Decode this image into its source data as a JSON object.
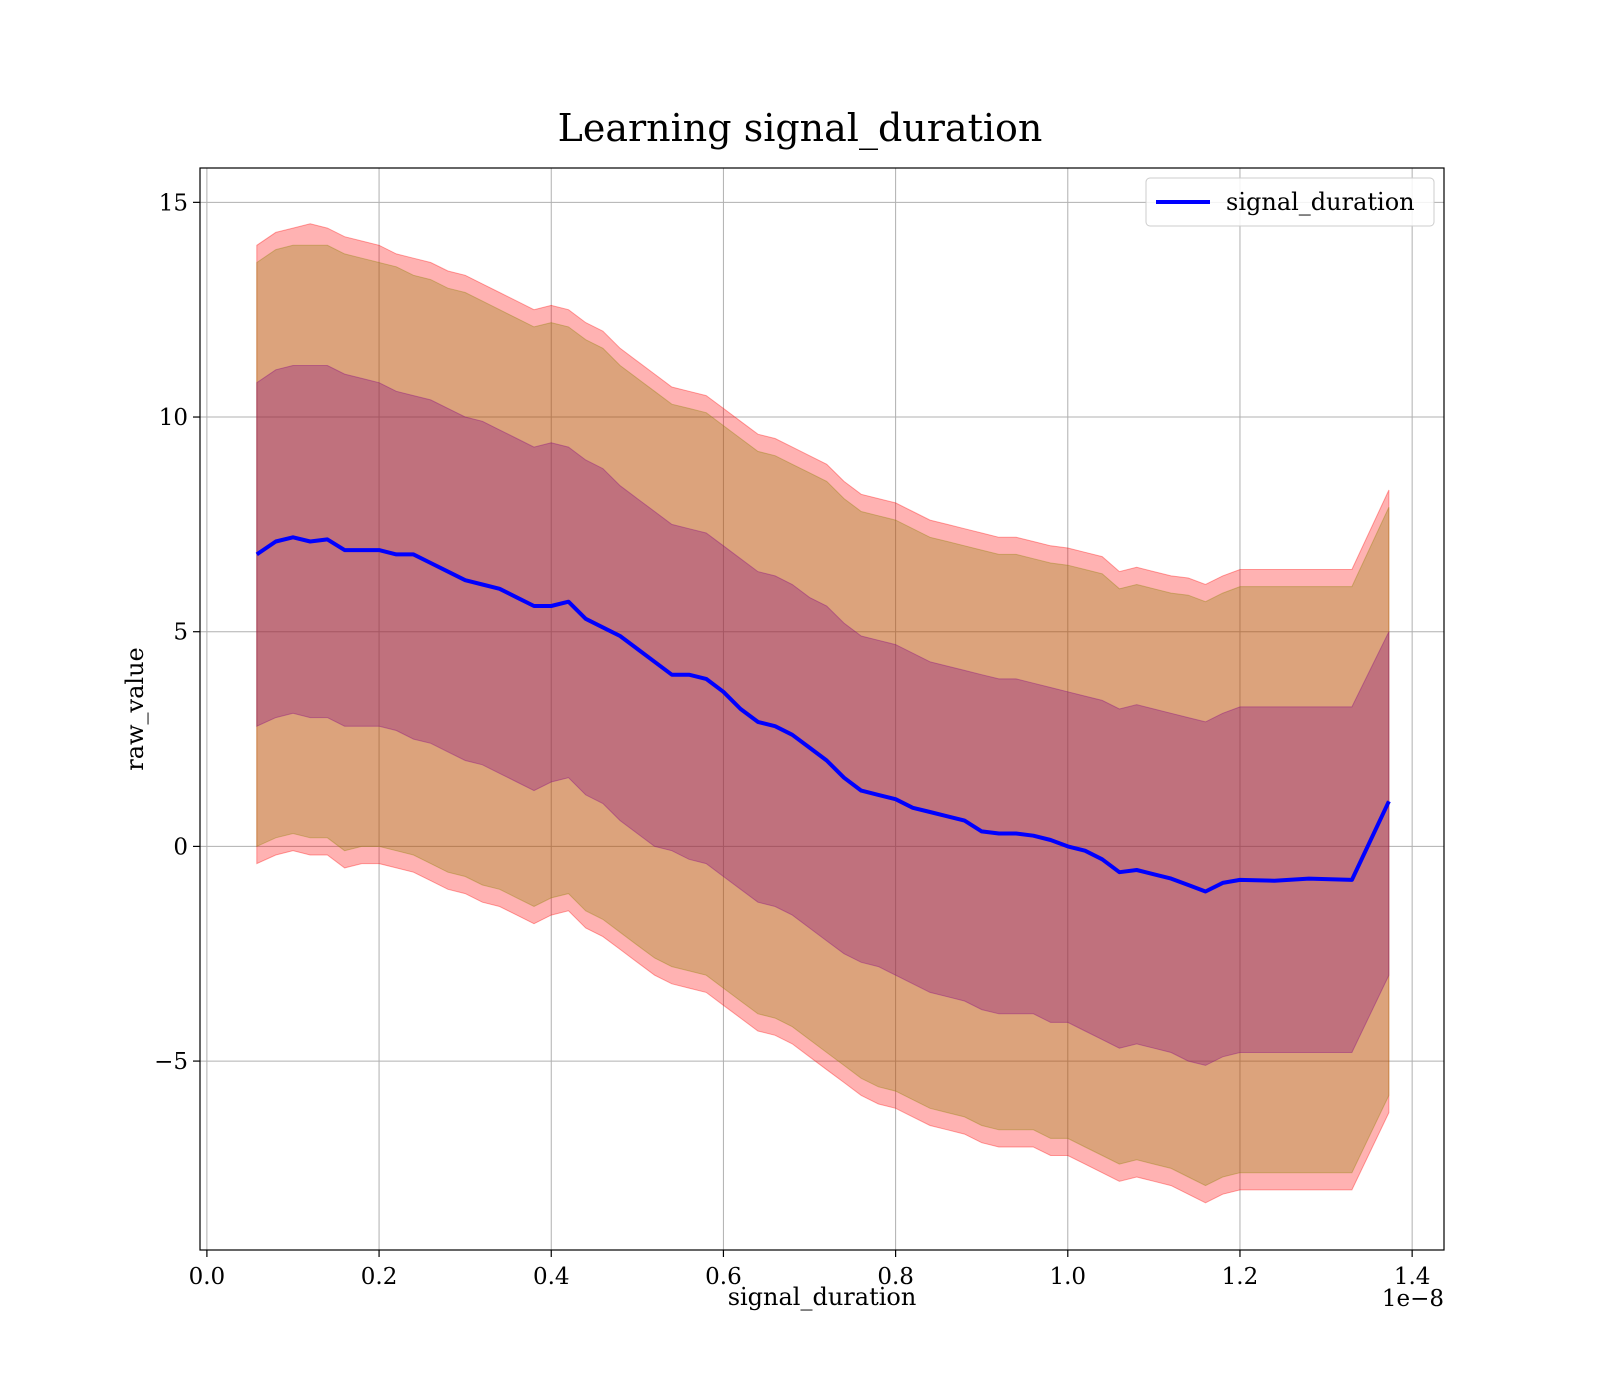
{
  "chart_data": {
    "type": "area",
    "title": "Learning signal_duration",
    "xlabel": "signal_duration",
    "ylabel": "raw_value",
    "x_offset_text": "1e−8",
    "x_scale": 1e-08,
    "xlim": [
      -0.008,
      1.437
    ],
    "ylim": [
      -9.4,
      15.8
    ],
    "x_ticks": [
      0.0,
      0.2,
      0.4,
      0.6,
      0.8,
      1.0,
      1.2,
      1.4
    ],
    "x_tick_labels": [
      "0.0",
      "0.2",
      "0.4",
      "0.6",
      "0.8",
      "1.0",
      "1.2",
      "1.4"
    ],
    "y_ticks": [
      -5,
      0,
      5,
      10,
      15
    ],
    "y_tick_labels": [
      "−5",
      "0",
      "5",
      "10",
      "15"
    ],
    "grid": true,
    "legend": {
      "position": "top-right",
      "entries": [
        "signal_duration"
      ]
    },
    "colors": {
      "line": "#0000ff",
      "band_outer": "#ff0000",
      "band_middle": "#8b8000",
      "band_inner": "#800080"
    },
    "x": [
      0.058,
      0.08,
      0.1,
      0.12,
      0.14,
      0.16,
      0.18,
      0.2,
      0.22,
      0.24,
      0.26,
      0.28,
      0.3,
      0.32,
      0.34,
      0.36,
      0.38,
      0.4,
      0.42,
      0.44,
      0.46,
      0.48,
      0.5,
      0.52,
      0.54,
      0.56,
      0.58,
      0.6,
      0.62,
      0.64,
      0.66,
      0.68,
      0.7,
      0.72,
      0.74,
      0.76,
      0.78,
      0.8,
      0.82,
      0.84,
      0.86,
      0.88,
      0.9,
      0.92,
      0.94,
      0.96,
      0.98,
      1.0,
      1.02,
      1.04,
      1.06,
      1.08,
      1.1,
      1.12,
      1.14,
      1.16,
      1.18,
      1.2,
      1.24,
      1.28,
      1.33,
      1.373
    ],
    "series": [
      {
        "name": "signal_duration",
        "values": [
          6.8,
          7.1,
          7.2,
          7.1,
          7.15,
          6.9,
          6.9,
          6.9,
          6.8,
          6.8,
          6.6,
          6.4,
          6.2,
          6.1,
          6.0,
          5.8,
          5.6,
          5.6,
          5.7,
          5.3,
          5.1,
          4.9,
          4.6,
          4.3,
          4.0,
          4.0,
          3.9,
          3.6,
          3.2,
          2.9,
          2.8,
          2.6,
          2.3,
          2.0,
          1.6,
          1.3,
          1.2,
          1.1,
          0.9,
          0.8,
          0.7,
          0.6,
          0.35,
          0.3,
          0.3,
          0.25,
          0.15,
          0.0,
          -0.1,
          -0.3,
          -0.6,
          -0.55,
          -0.65,
          -0.75,
          -0.9,
          -1.05,
          -0.85,
          -0.78,
          -0.8,
          -0.75,
          -0.78,
          1.05
        ]
      },
      {
        "name": "band_outer_upper",
        "values": [
          14.0,
          14.3,
          14.4,
          14.5,
          14.4,
          14.2,
          14.1,
          14.0,
          13.8,
          13.7,
          13.6,
          13.4,
          13.3,
          13.1,
          12.9,
          12.7,
          12.5,
          12.6,
          12.5,
          12.2,
          12.0,
          11.6,
          11.3,
          11.0,
          10.7,
          10.6,
          10.5,
          10.2,
          9.9,
          9.6,
          9.5,
          9.3,
          9.1,
          8.9,
          8.5,
          8.2,
          8.1,
          8.0,
          7.8,
          7.6,
          7.5,
          7.4,
          7.3,
          7.2,
          7.2,
          7.1,
          7.0,
          6.95,
          6.85,
          6.75,
          6.4,
          6.5,
          6.4,
          6.3,
          6.25,
          6.1,
          6.3,
          6.45,
          6.45,
          6.45,
          6.45,
          8.3
        ]
      },
      {
        "name": "band_outer_lower",
        "values": [
          -0.4,
          -0.2,
          -0.1,
          -0.2,
          -0.2,
          -0.5,
          -0.4,
          -0.4,
          -0.5,
          -0.6,
          -0.8,
          -1.0,
          -1.1,
          -1.3,
          -1.4,
          -1.6,
          -1.8,
          -1.6,
          -1.5,
          -1.9,
          -2.1,
          -2.4,
          -2.7,
          -3.0,
          -3.2,
          -3.3,
          -3.4,
          -3.7,
          -4.0,
          -4.3,
          -4.4,
          -4.6,
          -4.9,
          -5.2,
          -5.5,
          -5.8,
          -6.0,
          -6.1,
          -6.3,
          -6.5,
          -6.6,
          -6.7,
          -6.9,
          -7.0,
          -7.0,
          -7.0,
          -7.2,
          -7.2,
          -7.4,
          -7.6,
          -7.8,
          -7.7,
          -7.8,
          -7.9,
          -8.1,
          -8.3,
          -8.1,
          -8.0,
          -8.0,
          -8.0,
          -8.0,
          -6.2
        ]
      },
      {
        "name": "band_middle_upper",
        "values": [
          13.6,
          13.9,
          14.0,
          14.0,
          14.0,
          13.8,
          13.7,
          13.6,
          13.5,
          13.3,
          13.2,
          13.0,
          12.9,
          12.7,
          12.5,
          12.3,
          12.1,
          12.2,
          12.1,
          11.8,
          11.6,
          11.2,
          10.9,
          10.6,
          10.3,
          10.2,
          10.1,
          9.8,
          9.5,
          9.2,
          9.1,
          8.9,
          8.7,
          8.5,
          8.1,
          7.8,
          7.7,
          7.6,
          7.4,
          7.2,
          7.1,
          7.0,
          6.9,
          6.8,
          6.8,
          6.7,
          6.6,
          6.55,
          6.45,
          6.35,
          6.0,
          6.1,
          6.0,
          5.9,
          5.85,
          5.7,
          5.9,
          6.05,
          6.05,
          6.05,
          6.05,
          7.9
        ]
      },
      {
        "name": "band_middle_lower",
        "values": [
          0.0,
          0.2,
          0.3,
          0.2,
          0.2,
          -0.1,
          0.0,
          0.0,
          -0.1,
          -0.2,
          -0.4,
          -0.6,
          -0.7,
          -0.9,
          -1.0,
          -1.2,
          -1.4,
          -1.2,
          -1.1,
          -1.5,
          -1.7,
          -2.0,
          -2.3,
          -2.6,
          -2.8,
          -2.9,
          -3.0,
          -3.3,
          -3.6,
          -3.9,
          -4.0,
          -4.2,
          -4.5,
          -4.8,
          -5.1,
          -5.4,
          -5.6,
          -5.7,
          -5.9,
          -6.1,
          -6.2,
          -6.3,
          -6.5,
          -6.6,
          -6.6,
          -6.6,
          -6.8,
          -6.8,
          -7.0,
          -7.2,
          -7.4,
          -7.3,
          -7.4,
          -7.5,
          -7.7,
          -7.9,
          -7.7,
          -7.6,
          -7.6,
          -7.6,
          -7.6,
          -5.8
        ]
      },
      {
        "name": "band_inner_upper",
        "values": [
          10.8,
          11.1,
          11.2,
          11.2,
          11.2,
          11.0,
          10.9,
          10.8,
          10.6,
          10.5,
          10.4,
          10.2,
          10.0,
          9.9,
          9.7,
          9.5,
          9.3,
          9.4,
          9.3,
          9.0,
          8.8,
          8.4,
          8.1,
          7.8,
          7.5,
          7.4,
          7.3,
          7.0,
          6.7,
          6.4,
          6.3,
          6.1,
          5.8,
          5.6,
          5.2,
          4.9,
          4.8,
          4.7,
          4.5,
          4.3,
          4.2,
          4.1,
          4.0,
          3.9,
          3.9,
          3.8,
          3.7,
          3.6,
          3.5,
          3.4,
          3.2,
          3.3,
          3.2,
          3.1,
          3.0,
          2.9,
          3.1,
          3.25,
          3.25,
          3.25,
          3.25,
          5.0
        ]
      },
      {
        "name": "band_inner_lower",
        "values": [
          2.8,
          3.0,
          3.1,
          3.0,
          3.0,
          2.8,
          2.8,
          2.8,
          2.7,
          2.5,
          2.4,
          2.2,
          2.0,
          1.9,
          1.7,
          1.5,
          1.3,
          1.5,
          1.6,
          1.2,
          1.0,
          0.6,
          0.3,
          0.0,
          -0.1,
          -0.3,
          -0.4,
          -0.7,
          -1.0,
          -1.3,
          -1.4,
          -1.6,
          -1.9,
          -2.2,
          -2.5,
          -2.7,
          -2.8,
          -3.0,
          -3.2,
          -3.4,
          -3.5,
          -3.6,
          -3.8,
          -3.9,
          -3.9,
          -3.9,
          -4.1,
          -4.1,
          -4.3,
          -4.5,
          -4.7,
          -4.6,
          -4.7,
          -4.8,
          -5.0,
          -5.1,
          -4.9,
          -4.8,
          -4.8,
          -4.8,
          -4.8,
          -3.0
        ]
      }
    ]
  }
}
